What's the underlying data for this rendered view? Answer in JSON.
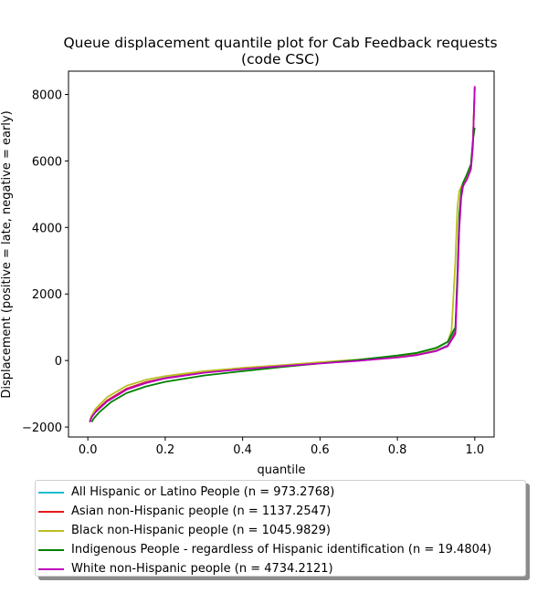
{
  "chart_data": {
    "type": "line",
    "title": "Queue displacement quantile plot for Cab Feedback  requests",
    "subtitle": "(code CSC)",
    "xlabel": "quantile",
    "ylabel": "Displacement (positive = late, negative = early)",
    "xlim": [
      -0.05,
      1.05
    ],
    "ylim": [
      -2300,
      8700
    ],
    "x_ticks": [
      0.0,
      0.2,
      0.4,
      0.6,
      0.8,
      1.0
    ],
    "x_tick_labels": [
      "0.0",
      "0.2",
      "0.4",
      "0.6",
      "0.8",
      "1.0"
    ],
    "y_ticks": [
      -2000,
      0,
      2000,
      4000,
      6000,
      8000
    ],
    "y_tick_labels": [
      "−2000",
      "0",
      "2000",
      "4000",
      "6000",
      "8000"
    ],
    "grid": false,
    "legend_position": "below",
    "series": [
      {
        "name": "All Hispanic or Latino People (n = 973.2768)",
        "color": "#17becf",
        "points": [
          [
            0.005,
            -1850
          ],
          [
            0.01,
            -1700
          ],
          [
            0.02,
            -1520
          ],
          [
            0.05,
            -1200
          ],
          [
            0.1,
            -850
          ],
          [
            0.15,
            -650
          ],
          [
            0.2,
            -520
          ],
          [
            0.3,
            -350
          ],
          [
            0.4,
            -250
          ],
          [
            0.5,
            -160
          ],
          [
            0.6,
            -80
          ],
          [
            0.7,
            0
          ],
          [
            0.8,
            110
          ],
          [
            0.85,
            180
          ],
          [
            0.9,
            300
          ],
          [
            0.93,
            460
          ],
          [
            0.95,
            900
          ],
          [
            0.955,
            2500
          ],
          [
            0.96,
            4200
          ],
          [
            0.965,
            5000
          ],
          [
            0.97,
            5300
          ],
          [
            0.98,
            5500
          ],
          [
            0.99,
            5800
          ],
          [
            0.995,
            6500
          ],
          [
            1.0,
            8200
          ]
        ]
      },
      {
        "name": "Asian non-Hispanic people (n = 1137.2547)",
        "color": "#e31a1c",
        "points": [
          [
            0.005,
            -1850
          ],
          [
            0.01,
            -1700
          ],
          [
            0.02,
            -1520
          ],
          [
            0.05,
            -1200
          ],
          [
            0.1,
            -850
          ],
          [
            0.15,
            -650
          ],
          [
            0.2,
            -530
          ],
          [
            0.3,
            -360
          ],
          [
            0.4,
            -250
          ],
          [
            0.5,
            -160
          ],
          [
            0.6,
            -80
          ],
          [
            0.7,
            0
          ],
          [
            0.8,
            100
          ],
          [
            0.85,
            170
          ],
          [
            0.9,
            290
          ],
          [
            0.93,
            440
          ],
          [
            0.95,
            850
          ],
          [
            0.955,
            2400
          ],
          [
            0.96,
            4100
          ],
          [
            0.965,
            5000
          ],
          [
            0.97,
            5300
          ],
          [
            0.98,
            5500
          ],
          [
            0.99,
            5800
          ],
          [
            0.995,
            6500
          ],
          [
            1.0,
            8200
          ]
        ]
      },
      {
        "name": "Black non-Hispanic people (n = 1045.9829)",
        "color": "#bcbd22",
        "points": [
          [
            0.005,
            -1800
          ],
          [
            0.01,
            -1650
          ],
          [
            0.02,
            -1450
          ],
          [
            0.05,
            -1100
          ],
          [
            0.1,
            -760
          ],
          [
            0.15,
            -580
          ],
          [
            0.2,
            -470
          ],
          [
            0.3,
            -320
          ],
          [
            0.4,
            -220
          ],
          [
            0.5,
            -140
          ],
          [
            0.6,
            -50
          ],
          [
            0.7,
            30
          ],
          [
            0.8,
            140
          ],
          [
            0.85,
            220
          ],
          [
            0.9,
            360
          ],
          [
            0.93,
            560
          ],
          [
            0.94,
            900
          ],
          [
            0.95,
            3000
          ],
          [
            0.955,
            4600
          ],
          [
            0.96,
            5100
          ],
          [
            0.97,
            5350
          ],
          [
            0.98,
            5500
          ],
          [
            0.99,
            5800
          ],
          [
            0.995,
            6500
          ],
          [
            1.0,
            8200
          ]
        ]
      },
      {
        "name": "Indigenous People - regardless of Hispanic identification (n = 19.4804)",
        "color": "#008000",
        "points": [
          [
            0.01,
            -1850
          ],
          [
            0.015,
            -1750
          ],
          [
            0.03,
            -1550
          ],
          [
            0.06,
            -1250
          ],
          [
            0.1,
            -980
          ],
          [
            0.15,
            -780
          ],
          [
            0.2,
            -640
          ],
          [
            0.3,
            -450
          ],
          [
            0.4,
            -320
          ],
          [
            0.5,
            -200
          ],
          [
            0.6,
            -90
          ],
          [
            0.7,
            20
          ],
          [
            0.8,
            150
          ],
          [
            0.85,
            230
          ],
          [
            0.9,
            380
          ],
          [
            0.93,
            560
          ],
          [
            0.95,
            1000
          ],
          [
            0.955,
            2600
          ],
          [
            0.96,
            4400
          ],
          [
            0.965,
            5100
          ],
          [
            0.97,
            5350
          ],
          [
            0.98,
            5600
          ],
          [
            0.99,
            5900
          ],
          [
            0.995,
            6600
          ],
          [
            1.0,
            7000
          ]
        ]
      },
      {
        "name": "White non-Hispanic people (n = 4734.2121)",
        "color": "#bf00bf",
        "points": [
          [
            0.005,
            -1850
          ],
          [
            0.01,
            -1700
          ],
          [
            0.02,
            -1550
          ],
          [
            0.05,
            -1230
          ],
          [
            0.1,
            -880
          ],
          [
            0.15,
            -680
          ],
          [
            0.2,
            -540
          ],
          [
            0.3,
            -370
          ],
          [
            0.4,
            -260
          ],
          [
            0.5,
            -170
          ],
          [
            0.6,
            -90
          ],
          [
            0.7,
            -10
          ],
          [
            0.8,
            90
          ],
          [
            0.85,
            160
          ],
          [
            0.9,
            280
          ],
          [
            0.93,
            430
          ],
          [
            0.95,
            800
          ],
          [
            0.955,
            2300
          ],
          [
            0.96,
            4000
          ],
          [
            0.965,
            4900
          ],
          [
            0.97,
            5250
          ],
          [
            0.98,
            5450
          ],
          [
            0.99,
            5750
          ],
          [
            0.995,
            6400
          ],
          [
            1.0,
            8250
          ]
        ]
      }
    ]
  }
}
